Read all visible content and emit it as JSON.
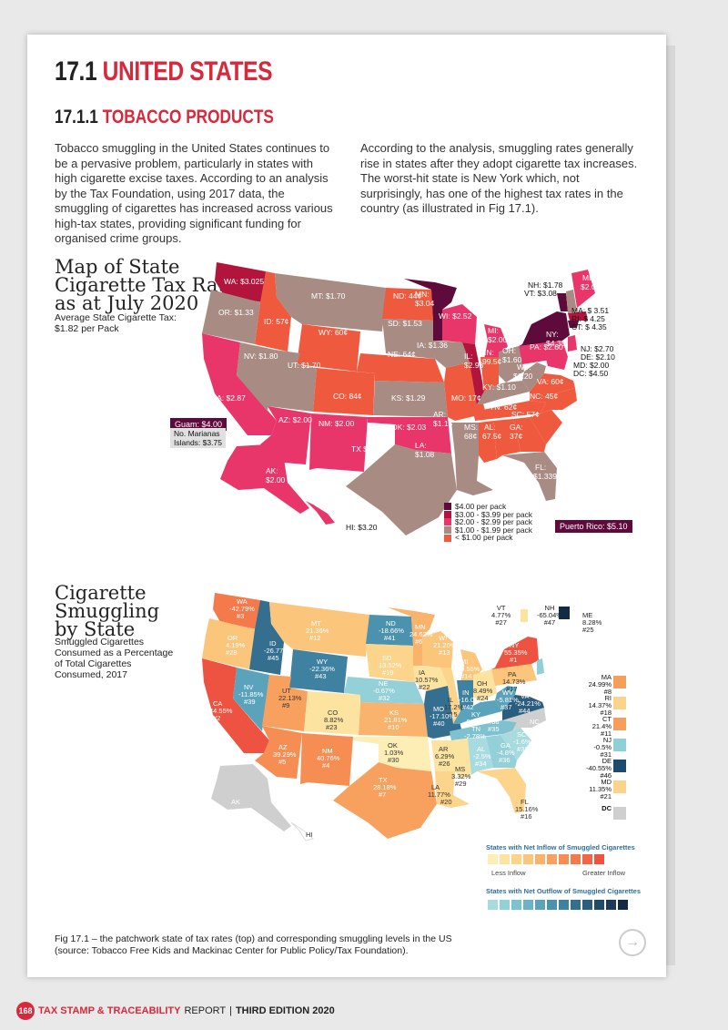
{
  "heading": {
    "num": "17.1",
    "text": "UNITED STATES"
  },
  "subheading": {
    "num": "17.1.1",
    "text": "TOBACCO PRODUCTS"
  },
  "paragraphs": [
    "Tobacco smuggling in the United States continues to be a pervasive problem, particularly in states with high cigarette excise taxes. According to an analysis by the Tax Foundation, using 2017 data, the smuggling of cigarettes has increased across various high-tax states, providing significant funding for organised crime groups.",
    "According to the analysis, smuggling rates generally rise in states after they adopt cigarette tax increases. The worst-hit state is New York which, not surprisingly, has one of the highest tax rates in the country (as illustrated in Fig 17.1)."
  ],
  "map1": {
    "title": [
      "Map of State",
      "Cigarette Tax Rates",
      "as at July 2020"
    ],
    "subtitle": [
      "Average State Cigarette Tax:",
      "$1.82 per Pack"
    ],
    "labels": {
      "WA": "WA: $3.025",
      "OR": "OR: $1.33",
      "ID": "ID: 57¢",
      "MT": "MT: $1.70",
      "ND": "ND: 44¢",
      "MN": "MN:",
      "MN2": "$3.04",
      "WY": "WY: 60¢",
      "SD": "SD: $1.53",
      "WI": "WI: $2.52",
      "MI": "MI:",
      "MI2": "$2.00",
      "NV": "NV: $1.80",
      "UT": "UT: $1.70",
      "NE": "NE: 64¢",
      "IA": "IA: $1.36",
      "IL": "IL:",
      "IL2": "$2.98",
      "IN": "IN:",
      "IN2": "99.5¢",
      "OH": "OH:",
      "OH2": "$1.60",
      "PA": "PA: $2.60",
      "NY": "NY:",
      "NY2": "$4.35",
      "CA": "CA: $2.87",
      "CO": "CO: 84¢",
      "KS": "KS: $1.29",
      "MO": "MO: 17¢",
      "KY": "KY: $1.10",
      "WV": "WV:",
      "WV2": "$1.20",
      "VA": "VA: 60¢",
      "NC": "NC: 45¢",
      "TN": "TN: 62¢",
      "AZ": "AZ: $2.00",
      "NM": "NM: $2.00",
      "OK": "OK: $2.03",
      "AR": "AR:",
      "AR2": "$1.15",
      "SC": "SC: 57¢",
      "MS": "MS:",
      "MS2": "68¢",
      "AL": "AL:",
      "AL2": "67.5¢",
      "GA": "GA:",
      "GA2": "37¢",
      "TX": "TX $1.41",
      "LA": "LA:",
      "LA2": "$1.08",
      "FL": "FL:",
      "FL2": "$1.339",
      "AK": "AK:",
      "AK2": "$2.00",
      "HI": "HI:  $3.20",
      "ME": "ME:",
      "ME2": "$2.00",
      "NH": "NH: $1.78",
      "VT": "VT:  $3.08",
      "MA": "MA: $ 3.51",
      "RI": "RI: $ 4.25",
      "CT": "CT: $ 4.35",
      "NJ": "NJ: $2.70",
      "DE": "DE: $2.10",
      "MD": "MD: $2.00",
      "DC": "DC: $4.50"
    },
    "guam": "Guam: $4.00",
    "marianas": [
      "No. Marianas",
      "Islands: $3.75"
    ],
    "puerto_rico": "Puerto Rico:  $5.10",
    "legend": [
      {
        "label": "$4.00 per pack",
        "color": "#5e0a3a"
      },
      {
        "label": "$3.00  - $3.99  per pack",
        "color": "#b3143c"
      },
      {
        "label": "$2.00  - $2.99  per pack",
        "color": "#e8356a"
      },
      {
        "label": "$1.00  - $1.99  per pack",
        "color": "#a88c84"
      },
      {
        "label": "< $1.00 per pack",
        "color": "#ef5a3e"
      }
    ]
  },
  "map2": {
    "title": [
      "Cigarette",
      "Smuggling",
      "by State"
    ],
    "subtitle": [
      "Smuggled Cigarettes",
      "Consumed as a Percentage",
      "of Total Cigarettes",
      "Consumed, 2017"
    ],
    "labels": {
      "WA": [
        "WA",
        "-42.79%",
        "#3"
      ],
      "OR": [
        "OR",
        "4.19%",
        "#28"
      ],
      "ID": [
        "ID",
        "-26.77%",
        "#45"
      ],
      "MT": [
        "MT",
        "21.36%",
        "#12"
      ],
      "ND": [
        "ND",
        "-18.66%",
        "#41"
      ],
      "MN": [
        "MN",
        "24.62%",
        "#6"
      ],
      "WI": [
        "WI",
        "21.20%",
        "#13"
      ],
      "MI": [
        "MI",
        "20.55%",
        "#14"
      ],
      "SD": [
        "SD",
        "13.52%",
        "#19"
      ],
      "WY": [
        "WY",
        "-22.36%",
        "#43"
      ],
      "NV": [
        "NV",
        "-11.85%",
        "#39"
      ],
      "UT": [
        "UT",
        "22.13%",
        "#9"
      ],
      "NE": [
        "NE",
        "-0.67%",
        "#32"
      ],
      "IA": [
        "IA",
        "10.57%",
        "#22"
      ],
      "IL": [
        "IL",
        "17.2%",
        "#15"
      ],
      "IN": [
        "IN",
        "-16.08%",
        "#42"
      ],
      "OH": [
        "OH",
        "8.49%",
        "#24"
      ],
      "PA": [
        "PA",
        "14.73%",
        "#17"
      ],
      "NY": [
        "NY",
        "55.35%",
        "#1"
      ],
      "CA": [
        "CA",
        "44.55%",
        "#2"
      ],
      "CO": [
        "CO",
        "8.82%",
        "#23"
      ],
      "KS": [
        "KS",
        "21.81%",
        "#10"
      ],
      "MO": [
        "MO",
        "-17.10%",
        "#40"
      ],
      "KY": [
        "KY",
        "-9.28%",
        "#38"
      ],
      "WV": [
        "WV",
        "-5.81%",
        "#37"
      ],
      "VA": [
        "VA",
        "-24.21%",
        "#44"
      ],
      "NC": [
        "NC",
        "",
        ""
      ],
      "TN": [
        "TN",
        "-2.78%",
        "#35"
      ],
      "AZ": [
        "AZ",
        "39.29%",
        "#5"
      ],
      "NM": [
        "NM",
        "40.76%",
        "#4"
      ],
      "OK": [
        "OK",
        "1.03%",
        "#30"
      ],
      "AR": [
        "AR",
        "6.29%",
        "#26"
      ],
      "MS": [
        "MS",
        "3.32%",
        "#29"
      ],
      "AL": [
        "AL",
        "-2.5%",
        "#34"
      ],
      "GA": [
        "GA",
        "-4.8%",
        "#36"
      ],
      "SC": [
        "SC",
        "-1.6%",
        "#33"
      ],
      "TX": [
        "TX",
        "28.18%",
        "#7"
      ],
      "LA": [
        "LA",
        "11.77%",
        "#20"
      ],
      "FL": [
        "FL",
        "15.16%",
        "#16"
      ],
      "AK": [
        "AK",
        "",
        ""
      ],
      "HI": [
        "HI",
        "",
        ""
      ]
    },
    "top_states": [
      {
        "name": "VT",
        "value": "4.77%",
        "rank": "#27"
      },
      {
        "name": "NH",
        "value": "-65.04%",
        "rank": "#47"
      },
      {
        "name": "ME",
        "value": "8.28%",
        "rank": "#25"
      }
    ],
    "side_states": [
      {
        "name": "MA",
        "value": "24.99%",
        "rank": "#8",
        "color": "#f5a05a"
      },
      {
        "name": "RI",
        "value": "14.37%",
        "rank": "#18",
        "color": "#fbd38a"
      },
      {
        "name": "CT",
        "value": "21.4%",
        "rank": "#11",
        "color": "#f5a05a"
      },
      {
        "name": "NJ",
        "value": "-0.5%",
        "rank": "#31",
        "color": "#8fd0d6"
      },
      {
        "name": "DE",
        "value": "-40.55%",
        "rank": "#46",
        "color": "#1e4a6e"
      },
      {
        "name": "MD",
        "value": "11.35%",
        "rank": "#21",
        "color": "#fbd38a"
      },
      {
        "name": "DC",
        "value": "",
        "rank": "",
        "color": "#cfcfcf"
      }
    ],
    "inflow_title": "States with Net Inflow of Smuggled Cigarettes",
    "inflow_low": "Less Inflow",
    "inflow_high": "Greater Inflow",
    "inflow_colors": [
      "#fdeeb6",
      "#fde3a0",
      "#fcd48c",
      "#fbc57c",
      "#f9b36c",
      "#f8a15e",
      "#f68e54",
      "#f47a4c",
      "#f16646",
      "#ee5240"
    ],
    "outflow_title": "States with Net Outflow of Smuggled Cigarettes",
    "outflow_colors": [
      "#a7dbe0",
      "#93d0d8",
      "#7fc2cf",
      "#6bb3c5",
      "#5aa3bb",
      "#4b92ae",
      "#3f81a0",
      "#346f90",
      "#2a5d7e",
      "#214b6b",
      "#1a3a58",
      "#132a46"
    ]
  },
  "caption": [
    "Fig 17.1 – the patchwork state of tax rates (top) and corresponding smuggling levels in the US",
    "(source: Tobacco Free Kids and Mackinac Center for Public Policy/Tax Foundation)."
  ],
  "footer": {
    "page": "168",
    "brand_a": "TAX STAMP & TRACEABILITY",
    "brand_b": "REPORT",
    "edition": "THIRD EDITION 2020"
  }
}
